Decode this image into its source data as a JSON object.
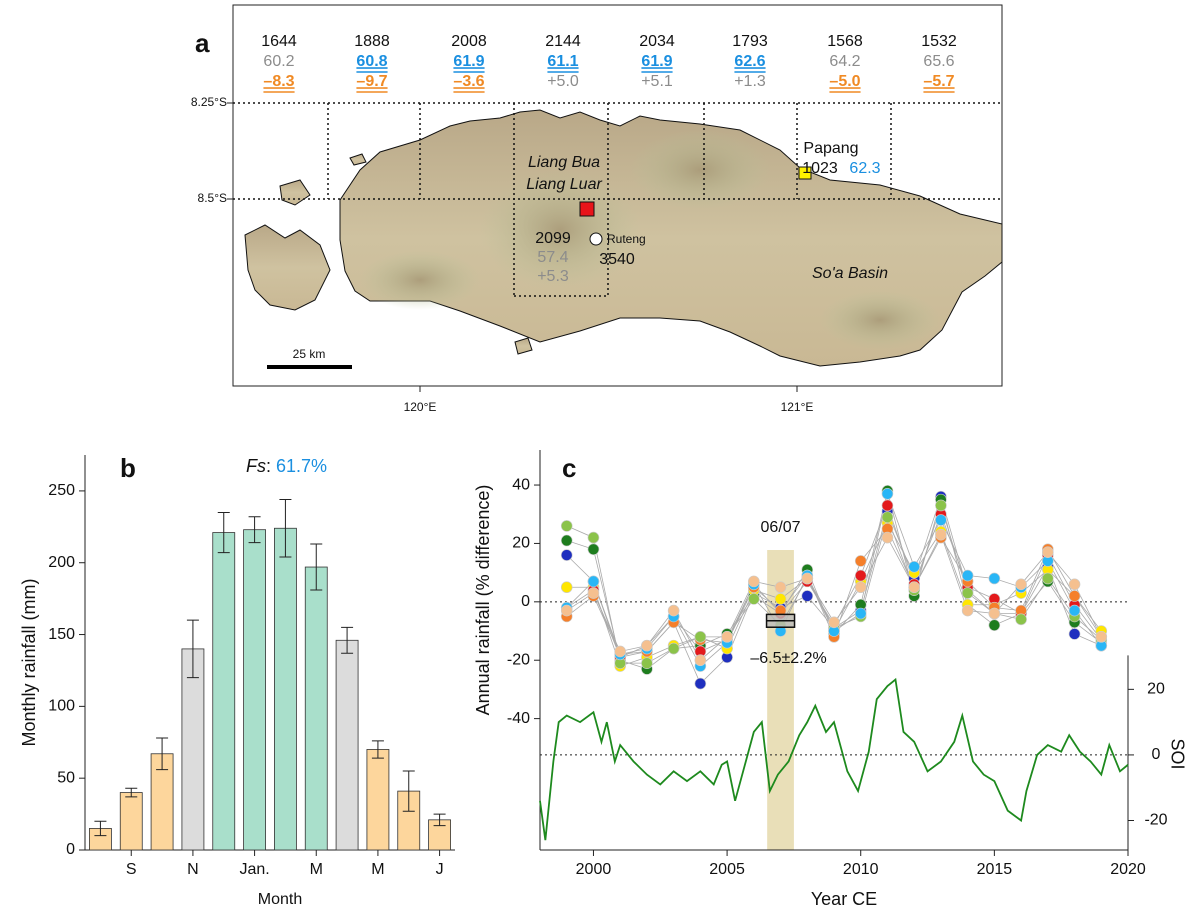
{
  "map": {
    "panel": "a",
    "cells": [
      {
        "n": "1644",
        "fs": {
          "text": "60.2",
          "color": "#8c8c8c",
          "emph": false
        },
        "d": {
          "text": "–8.3",
          "color": "#f08a24",
          "emph": true
        }
      },
      {
        "n": "1888",
        "fs": {
          "text": "60.8",
          "color": "#1a8fe0",
          "emph": true
        },
        "d": {
          "text": "–9.7",
          "color": "#f08a24",
          "emph": true
        }
      },
      {
        "n": "2008",
        "fs": {
          "text": "61.9",
          "color": "#1a8fe0",
          "emph": true
        },
        "d": {
          "text": "–3.6",
          "color": "#f08a24",
          "emph": true
        }
      },
      {
        "n": "2144",
        "fs": {
          "text": "61.1",
          "color": "#1a8fe0",
          "emph": true
        },
        "d": {
          "text": "+5.0",
          "color": "#8c8c8c",
          "emph": false
        }
      },
      {
        "n": "2034",
        "fs": {
          "text": "61.9",
          "color": "#1a8fe0",
          "emph": true
        },
        "d": {
          "text": "+5.1",
          "color": "#8c8c8c",
          "emph": false
        }
      },
      {
        "n": "1793",
        "fs": {
          "text": "62.6",
          "color": "#1a8fe0",
          "emph": true
        },
        "d": {
          "text": "+1.3",
          "color": "#8c8c8c",
          "emph": false
        }
      },
      {
        "n": "1568",
        "fs": {
          "text": "64.2",
          "color": "#8c8c8c",
          "emph": false
        },
        "d": {
          "text": "–5.0",
          "color": "#f08a24",
          "emph": true
        }
      },
      {
        "n": "1532",
        "fs": {
          "text": "65.6",
          "color": "#8c8c8c",
          "emph": false
        },
        "d": {
          "text": "–5.7",
          "color": "#f08a24",
          "emph": true
        }
      }
    ],
    "lat_labels": [
      "8.25°S",
      "8.5°S"
    ],
    "lon_labels": [
      "120°E",
      "121°E"
    ],
    "scale": "25 km",
    "liang_bua": "Liang Bua",
    "liang_luar": "Liang Luar",
    "cave_cell": {
      "n": "2099",
      "fs": "57.4",
      "d": "+5.3"
    },
    "ruteng": "Ruteng",
    "ruteng_n": "3540",
    "papang": "Papang",
    "papang_n": "1023",
    "papang_fs": "62.3",
    "basin": "So'a Basin"
  },
  "chart_data": [
    {
      "type": "bar",
      "panel": "b",
      "annotation_label": "Fs",
      "annotation_sep": ":",
      "annotation_value": "61.7%",
      "annotation_color": "#1a8fe0",
      "xlabel": "Month",
      "ylabel": "Monthly rainfall (mm)",
      "categories": [
        null,
        "S",
        null,
        "N",
        null,
        "Jan.",
        null,
        "M",
        null,
        "M",
        null,
        "J"
      ],
      "values": [
        15,
        40,
        67,
        140,
        221,
        223,
        224,
        197,
        146,
        70,
        41,
        21
      ],
      "errors": [
        5,
        3,
        11,
        20,
        14,
        9,
        20,
        16,
        9,
        6,
        14,
        4
      ],
      "colors": [
        "#fdd69c",
        "#fdd69c",
        "#fdd69c",
        "#dcdcdc",
        "#a9dfcb",
        "#a9dfcb",
        "#a9dfcb",
        "#a9dfcb",
        "#dcdcdc",
        "#fdd69c",
        "#fdd69c",
        "#fdd69c"
      ],
      "ylim": [
        0,
        275
      ],
      "yticks": [
        0,
        50,
        100,
        150,
        200,
        250
      ]
    },
    {
      "type": "scatter",
      "panel": "c",
      "xlabel": "Year CE",
      "ylabel": "Annual rainfall (% difference)",
      "y2label": "SOI",
      "x": [
        1999,
        2000,
        2001,
        2002,
        2003,
        2004,
        2005,
        2006,
        2007,
        2008,
        2009,
        2010,
        2011,
        2012,
        2013,
        2014,
        2015,
        2016,
        2017,
        2018,
        2019
      ],
      "series": [
        {
          "color": "#1f2fbf",
          "values": [
            16,
            7,
            -19,
            -17,
            -7,
            -28,
            -19,
            3,
            -2,
            2,
            -9,
            -3,
            31,
            8,
            36,
            4,
            -4,
            -4,
            12,
            -11,
            -15
          ]
        },
        {
          "color": "#1e7d1e",
          "values": [
            21,
            18,
            -20,
            -23,
            -16,
            -15,
            -11,
            2,
            -4,
            11,
            -11,
            -1,
            38,
            2,
            35,
            -1,
            -8,
            -4,
            7,
            -7,
            -14
          ]
        },
        {
          "color": "#ffe600",
          "values": [
            5,
            5,
            -22,
            -19,
            -15,
            -12,
            -16,
            4,
            1,
            8,
            -10,
            7,
            27,
            10,
            24,
            -1,
            -1,
            3,
            11,
            2,
            -10
          ]
        },
        {
          "color": "#e31a1c",
          "values": [
            -2,
            4,
            -19,
            -15,
            -5,
            -17,
            -13,
            6,
            -4,
            7,
            -8,
            9,
            33,
            6,
            30,
            5,
            1,
            -4,
            16,
            -1,
            -13
          ]
        },
        {
          "color": "#f57f2a",
          "values": [
            -5,
            2,
            -18,
            -17,
            -7,
            -13,
            -14,
            5,
            -3,
            9,
            -12,
            14,
            25,
            5,
            22,
            7,
            -2,
            -3,
            18,
            2,
            -12
          ]
        },
        {
          "color": "#8bc34a",
          "values": [
            26,
            22,
            -21,
            -21,
            -16,
            -12,
            -12,
            1,
            -8,
            8,
            -9,
            -5,
            29,
            4,
            33,
            3,
            -4,
            -6,
            8,
            -5,
            -13
          ]
        },
        {
          "color": "#29b6f6",
          "values": [
            -2,
            7,
            -18,
            -16,
            -5,
            -22,
            -14,
            6,
            -10,
            9,
            -10,
            -4,
            37,
            12,
            28,
            9,
            8,
            5,
            14,
            -3,
            -15
          ]
        },
        {
          "color": "#f5c08f",
          "values": [
            -3,
            3,
            -17,
            -15,
            -3,
            -20,
            -12,
            7,
            5,
            8,
            -7,
            5,
            22,
            5,
            23,
            -3,
            -4,
            6,
            17,
            6,
            -12
          ]
        },
        {
          "type": "line",
          "axis": "y2",
          "color": "#1e8a1e",
          "x": [
            1998.0,
            1998.2,
            1998.5,
            1998.7,
            1999.0,
            1999.5,
            2000.0,
            2000.3,
            2000.5,
            2000.8,
            2001.0,
            2001.5,
            2002.0,
            2002.5,
            2003.0,
            2003.5,
            2004.0,
            2004.5,
            2004.8,
            2005.0,
            2005.3,
            2005.7,
            2006.0,
            2006.3,
            2006.6,
            2006.9,
            2007.3,
            2007.7,
            2008.0,
            2008.3,
            2008.7,
            2009.0,
            2009.5,
            2009.9,
            2010.3,
            2010.6,
            2011.0,
            2011.3,
            2011.6,
            2012.0,
            2012.5,
            2013.0,
            2013.5,
            2013.8,
            2014.2,
            2014.6,
            2015.0,
            2015.5,
            2016.0,
            2016.2,
            2016.6,
            2017.0,
            2017.5,
            2017.8,
            2018.2,
            2018.6,
            2019.0,
            2019.3,
            2019.7,
            2020.0
          ],
          "values": [
            -14,
            -26,
            -2,
            10,
            12,
            10,
            13,
            4,
            10,
            -2,
            3,
            -2,
            -6,
            -9,
            -5,
            -8,
            -5,
            -9,
            -3,
            -2,
            -14,
            -2,
            7,
            10,
            -11,
            -6,
            -2,
            6,
            10,
            15,
            7,
            10,
            -5,
            -11,
            1,
            17,
            21,
            23,
            7,
            4,
            -5,
            -2,
            4,
            12,
            -2,
            -6,
            -8,
            -17,
            -20,
            -11,
            0,
            3,
            1,
            6,
            1,
            -2,
            -6,
            3,
            -5,
            -3
          ]
        }
      ],
      "highlight": {
        "label": "06/07",
        "x": [
          2006.5,
          2007.5
        ],
        "color": "#e9dfb8",
        "mean": -6.5,
        "error": 2.2,
        "annotation": "–6.5±2.2%"
      },
      "xlim": [
        1998,
        2020
      ],
      "xticks": [
        2000,
        2005,
        2010,
        2015,
        2020
      ],
      "ylim": [
        -85,
        52
      ],
      "yticks": [
        -40,
        -20,
        0,
        20,
        40
      ],
      "y2lim": [
        -29,
        93
      ],
      "y2ticks": [
        -20,
        0,
        20
      ],
      "zero_line": true
    }
  ]
}
